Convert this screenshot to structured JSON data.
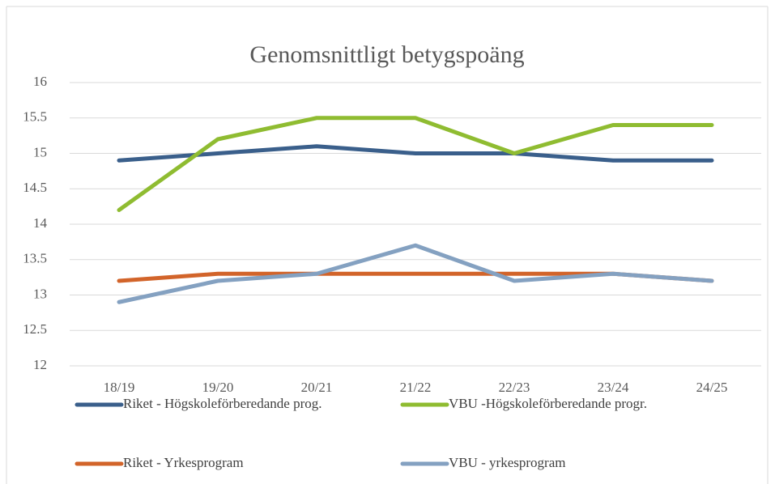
{
  "chart_data": {
    "type": "line",
    "title": "Genomsnittligt betygspoäng",
    "categories": [
      "18/19",
      "19/20",
      "20/21",
      "21/22",
      "22/23",
      "23/24",
      "24/25"
    ],
    "series": [
      {
        "name": "Riket - Högskoleförberedande prog.",
        "color": "#3a5f8b",
        "values": [
          14.9,
          15.0,
          15.1,
          15.0,
          15.0,
          14.9,
          14.9
        ]
      },
      {
        "name": "VBU -Högskoleförberedande progr.",
        "color": "#8fbc31",
        "values": [
          14.2,
          15.2,
          15.5,
          15.5,
          15.0,
          15.4,
          15.4
        ]
      },
      {
        "name": "Riket - Yrkesprogram",
        "color": "#d2642a",
        "values": [
          13.2,
          13.3,
          13.3,
          13.3,
          13.3,
          13.3,
          13.2
        ]
      },
      {
        "name": "VBU - yrkesprogram",
        "color": "#84a1c1",
        "values": [
          12.9,
          13.2,
          13.3,
          13.7,
          13.2,
          13.3,
          13.2
        ]
      }
    ],
    "ylim": [
      12,
      16
    ],
    "yticks": [
      12,
      12.5,
      13,
      13.5,
      14,
      14.5,
      15,
      15.5,
      16
    ],
    "grid": true,
    "legend": "bottom"
  }
}
